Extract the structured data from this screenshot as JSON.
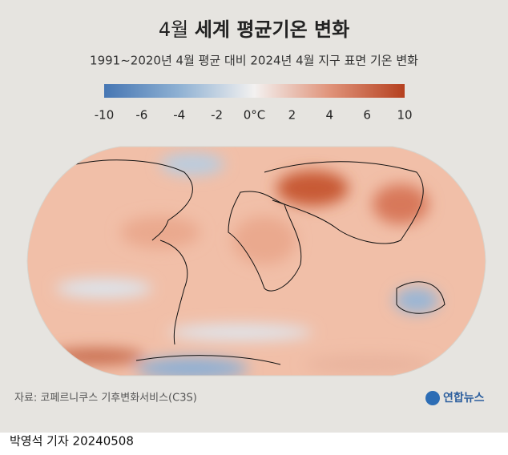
{
  "header": {
    "title_lead": "4월",
    "title_main": "세계 평균기온 변화",
    "subtitle": "1991~2020년 4월 평균 대비 2024년 4월 지구 표면 기온 변화"
  },
  "legend": {
    "ticks": [
      -10,
      -6,
      -4,
      -2,
      {
        "value": 0,
        "label": "0°C"
      },
      2,
      4,
      6,
      10
    ]
  },
  "footer": {
    "source": "자료: 코페르니쿠스 기후변화서비스(C3S)",
    "logo": "연합뉴스",
    "byline": "박영석 기자 20240508"
  }
}
